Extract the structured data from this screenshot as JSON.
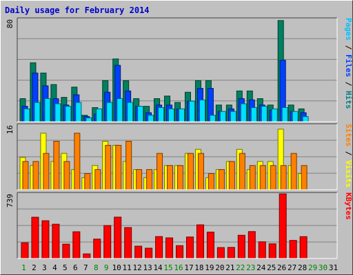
{
  "title": "Daily usage for February 2014",
  "chart_data": [
    {
      "type": "bar",
      "panel": "top",
      "max_label": "80",
      "ylim": [
        0,
        80
      ],
      "categories": [
        "1",
        "2",
        "3",
        "4",
        "5",
        "6",
        "7",
        "8",
        "9",
        "10",
        "11",
        "12",
        "13",
        "14",
        "15",
        "16",
        "17",
        "18",
        "19",
        "20",
        "21",
        "22",
        "23",
        "24",
        "25",
        "26",
        "27",
        "28",
        "29",
        "30",
        "31"
      ],
      "side_label": [
        {
          "text": "Pages",
          "color": "#00c0ff"
        },
        {
          "text": " / ",
          "color": "#000000"
        },
        {
          "text": "Files",
          "color": "#0040ff"
        },
        {
          "text": " / ",
          "color": "#000000"
        },
        {
          "text": "Hits",
          "color": "#008080"
        }
      ],
      "series": [
        {
          "name": "Hits",
          "color": "#008060",
          "values": [
            18,
            46,
            38,
            29,
            19,
            27,
            5,
            11,
            32,
            49,
            32,
            18,
            12,
            18,
            20,
            15,
            23,
            32,
            32,
            13,
            13,
            24,
            24,
            18,
            13,
            79,
            13,
            10,
            null,
            null,
            null
          ]
        },
        {
          "name": "Files",
          "color": "#0040ff",
          "values": [
            12,
            38,
            28,
            18,
            13,
            21,
            4,
            6,
            23,
            44,
            24,
            12,
            7,
            13,
            13,
            10,
            16,
            26,
            26,
            8,
            10,
            18,
            17,
            13,
            9,
            48,
            8,
            7,
            null,
            null,
            null
          ]
        },
        {
          "name": "Pages",
          "color": "#00e0ff",
          "values": [
            10,
            15,
            18,
            14,
            12,
            15,
            3,
            10,
            15,
            18,
            15,
            12,
            5,
            11,
            10,
            10,
            16,
            17,
            5,
            8,
            8,
            14,
            11,
            12,
            10,
            11,
            8,
            4,
            null,
            null,
            null
          ]
        }
      ]
    },
    {
      "type": "bar",
      "panel": "middle",
      "max_label": "16",
      "ylim": [
        0,
        16
      ],
      "categories": [
        "1",
        "2",
        "3",
        "4",
        "5",
        "6",
        "7",
        "8",
        "9",
        "10",
        "11",
        "12",
        "13",
        "14",
        "15",
        "16",
        "17",
        "18",
        "19",
        "20",
        "21",
        "22",
        "23",
        "24",
        "25",
        "26",
        "27",
        "28",
        "29",
        "30",
        "31"
      ],
      "side_label": [
        {
          "text": "Sites",
          "color": "#ff8000"
        },
        {
          "text": " / ",
          "color": "#000000"
        },
        {
          "text": "Visits",
          "color": "#ffff00"
        }
      ],
      "series": [
        {
          "name": "Visits",
          "color": "#ffff00",
          "values": [
            8,
            6,
            14,
            7,
            9,
            5,
            3,
            6,
            12,
            11,
            7,
            5,
            3,
            5,
            6,
            6,
            9,
            10,
            3,
            5,
            7,
            10,
            5,
            7,
            7,
            15,
            6,
            4,
            null,
            null,
            null
          ]
        },
        {
          "name": "Sites",
          "color": "#ff8000",
          "values": [
            7,
            7,
            9,
            12,
            7,
            14,
            4,
            5,
            11,
            11,
            12,
            5,
            5,
            9,
            6,
            6,
            9,
            9,
            4,
            5,
            7,
            9,
            6,
            6,
            6,
            6,
            9,
            6,
            null,
            null,
            null
          ]
        }
      ]
    },
    {
      "type": "bar",
      "panel": "bottom",
      "max_label": "739",
      "ylim": [
        0,
        739
      ],
      "categories": [
        "1",
        "2",
        "3",
        "4",
        "5",
        "6",
        "7",
        "8",
        "9",
        "10",
        "11",
        "12",
        "13",
        "14",
        "15",
        "16",
        "17",
        "18",
        "19",
        "20",
        "21",
        "22",
        "23",
        "24",
        "25",
        "26",
        "27",
        "28",
        "29",
        "30",
        "31"
      ],
      "side_label": [
        {
          "text": "KBytes",
          "color": "#ff0000"
        }
      ],
      "series": [
        {
          "name": "KBytes",
          "color": "#ff0000",
          "values": [
            180,
            472,
            432,
            392,
            164,
            306,
            53,
            222,
            377,
            473,
            354,
            141,
            118,
            251,
            236,
            147,
            246,
            385,
            302,
            125,
            127,
            266,
            308,
            191,
            168,
            739,
            207,
            250,
            null,
            null,
            null
          ]
        }
      ]
    }
  ],
  "days": [
    {
      "label": "1",
      "color": "#008000"
    },
    {
      "label": "2",
      "color": "#000000"
    },
    {
      "label": "3",
      "color": "#000000"
    },
    {
      "label": "4",
      "color": "#000000"
    },
    {
      "label": "5",
      "color": "#000000"
    },
    {
      "label": "6",
      "color": "#000000"
    },
    {
      "label": "7",
      "color": "#000000"
    },
    {
      "label": "8",
      "color": "#008000"
    },
    {
      "label": "9",
      "color": "#008000"
    },
    {
      "label": "10",
      "color": "#000000"
    },
    {
      "label": "11",
      "color": "#000000"
    },
    {
      "label": "12",
      "color": "#000000"
    },
    {
      "label": "13",
      "color": "#000000"
    },
    {
      "label": "14",
      "color": "#000000"
    },
    {
      "label": "15",
      "color": "#008000"
    },
    {
      "label": "16",
      "color": "#008000"
    },
    {
      "label": "17",
      "color": "#000000"
    },
    {
      "label": "18",
      "color": "#000000"
    },
    {
      "label": "19",
      "color": "#000000"
    },
    {
      "label": "20",
      "color": "#000000"
    },
    {
      "label": "21",
      "color": "#000000"
    },
    {
      "label": "22",
      "color": "#008000"
    },
    {
      "label": "23",
      "color": "#008000"
    },
    {
      "label": "24",
      "color": "#000000"
    },
    {
      "label": "25",
      "color": "#000000"
    },
    {
      "label": "26",
      "color": "#000000"
    },
    {
      "label": "27",
      "color": "#000000"
    },
    {
      "label": "28",
      "color": "#000000"
    },
    {
      "label": "29",
      "color": "#008000"
    },
    {
      "label": "30",
      "color": "#008000"
    },
    {
      "label": "31",
      "color": "#000000"
    }
  ]
}
